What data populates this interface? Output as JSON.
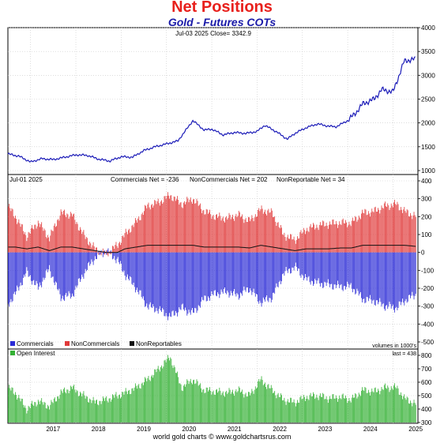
{
  "header": {
    "title": "Net Positions",
    "subtitle": "Gold - Futures COTs",
    "credit": "world gold charts © www.goldchartsrus.com"
  },
  "colors": {
    "title": "#e8201c",
    "subtitle": "#1a1aa8",
    "price_line": "#1c1cb8",
    "commercials": "#2b2bd6",
    "noncommercials": "#e03a3a",
    "nonreportables": "#111111",
    "open_interest": "#34b034"
  },
  "chart_data": [
    {
      "type": "line",
      "panel": "price",
      "annotation": "Jul-03  2025   Close= 3342.9",
      "ylim": [
        1000,
        4000
      ],
      "yticks": [
        "1000",
        "1500",
        "2000",
        "2500",
        "3000",
        "3500",
        "4000"
      ],
      "x": [
        "2016-07",
        "2016-10",
        "2017-01",
        "2017-04",
        "2017-07",
        "2017-10",
        "2018-01",
        "2018-04",
        "2018-07",
        "2018-10",
        "2019-01",
        "2019-04",
        "2019-07",
        "2019-10",
        "2020-01",
        "2020-04",
        "2020-08",
        "2020-11",
        "2021-01",
        "2021-04",
        "2021-07",
        "2021-10",
        "2022-01",
        "2022-03",
        "2022-06",
        "2022-09",
        "2022-11",
        "2023-02",
        "2023-05",
        "2023-08",
        "2023-10",
        "2024-01",
        "2024-03",
        "2024-05",
        "2024-08",
        "2024-10",
        "2025-01",
        "2025-04",
        "2025-07"
      ],
      "series": [
        {
          "values": [
            1350,
            1300,
            1180,
            1250,
            1230,
            1280,
            1330,
            1320,
            1240,
            1200,
            1290,
            1280,
            1420,
            1500,
            1560,
            1620,
            2050,
            1850,
            1870,
            1750,
            1800,
            1780,
            1820,
            1950,
            1820,
            1660,
            1780,
            1900,
            1980,
            1930,
            1920,
            2050,
            2200,
            2400,
            2500,
            2700,
            2650,
            3300,
            3342.9
          ]
        }
      ]
    },
    {
      "type": "bar",
      "panel": "net_positions",
      "annotation_date": "Jul-01  2025",
      "annotations": [
        "Commercials Net = -236",
        "NonCommercials Net = 202",
        "NonReportable Net = 34"
      ],
      "ylim": [
        -500,
        400
      ],
      "yticks": [
        "-500",
        "-400",
        "-300",
        "-200",
        "-100",
        "0",
        "100",
        "200",
        "300",
        "400"
      ],
      "x": [
        "2016-07",
        "2016-09",
        "2016-12",
        "2017-03",
        "2017-06",
        "2017-09",
        "2017-12",
        "2018-03",
        "2018-06",
        "2018-09",
        "2018-12",
        "2019-02",
        "2019-05",
        "2019-08",
        "2019-11",
        "2020-02",
        "2020-05",
        "2020-08",
        "2020-11",
        "2021-02",
        "2021-05",
        "2021-08",
        "2021-11",
        "2022-02",
        "2022-05",
        "2022-08",
        "2022-11",
        "2023-02",
        "2023-05",
        "2023-08",
        "2023-11",
        "2024-02",
        "2024-05",
        "2024-08",
        "2024-11",
        "2025-02",
        "2025-04",
        "2025-07"
      ],
      "series": [
        {
          "name": "Commercials",
          "values": [
            -290,
            -230,
            -110,
            -200,
            -90,
            -250,
            -240,
            -120,
            -30,
            10,
            -40,
            -120,
            -200,
            -300,
            -320,
            -360,
            -310,
            -340,
            -260,
            -230,
            -220,
            -240,
            -200,
            -280,
            -250,
            -120,
            -80,
            -150,
            -170,
            -180,
            -190,
            -190,
            -260,
            -270,
            -300,
            -310,
            -270,
            -236
          ]
        },
        {
          "name": "NonCommercials",
          "values": [
            260,
            200,
            90,
            170,
            80,
            220,
            210,
            100,
            20,
            -10,
            40,
            100,
            170,
            260,
            280,
            320,
            270,
            300,
            230,
            200,
            190,
            210,
            175,
            240,
            220,
            100,
            70,
            130,
            150,
            160,
            165,
            165,
            220,
            230,
            260,
            270,
            230,
            202
          ]
        },
        {
          "name": "NonReportables",
          "values": [
            30,
            30,
            20,
            30,
            10,
            30,
            30,
            20,
            10,
            0,
            0,
            20,
            30,
            40,
            40,
            40,
            40,
            40,
            30,
            30,
            30,
            30,
            25,
            40,
            30,
            20,
            10,
            20,
            20,
            20,
            25,
            25,
            40,
            40,
            40,
            40,
            40,
            34
          ]
        }
      ],
      "legend": [
        "Commercials",
        "NonCommercials",
        "NonReportables"
      ],
      "units_note": "volumes in 1000's"
    },
    {
      "type": "bar",
      "panel": "open_interest",
      "last_note": "last = 438",
      "ylim": [
        300,
        800
      ],
      "yticks": [
        "300",
        "400",
        "500",
        "600",
        "700",
        "800"
      ],
      "x": [
        "2016-07",
        "2016-09",
        "2016-12",
        "2017-03",
        "2017-06",
        "2017-09",
        "2017-12",
        "2018-03",
        "2018-06",
        "2018-09",
        "2018-12",
        "2019-02",
        "2019-05",
        "2019-08",
        "2019-11",
        "2020-02",
        "2020-05",
        "2020-08",
        "2020-11",
        "2021-02",
        "2021-05",
        "2021-08",
        "2021-11",
        "2022-02",
        "2022-05",
        "2022-08",
        "2022-11",
        "2023-02",
        "2023-05",
        "2023-08",
        "2023-11",
        "2024-02",
        "2024-05",
        "2024-08",
        "2024-11",
        "2025-02",
        "2025-04",
        "2025-07"
      ],
      "series": [
        {
          "name": "Open Interest",
          "values": [
            560,
            520,
            400,
            460,
            420,
            520,
            560,
            500,
            450,
            470,
            500,
            520,
            560,
            620,
            700,
            790,
            560,
            620,
            540,
            530,
            520,
            540,
            500,
            620,
            540,
            470,
            450,
            490,
            500,
            480,
            490,
            470,
            540,
            530,
            560,
            560,
            480,
            438
          ]
        }
      ],
      "legend": [
        "Open Interest"
      ],
      "xticks": [
        "2017",
        "2018",
        "2019",
        "2020",
        "2021",
        "2022",
        "2023",
        "2024",
        "2025"
      ]
    }
  ]
}
